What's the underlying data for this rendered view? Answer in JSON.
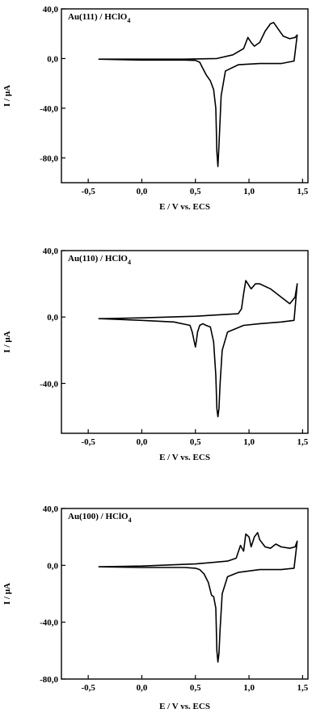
{
  "chart_data": [
    {
      "type": "line",
      "label_main": "Au(111) / HClO",
      "label_sub": "4",
      "xlabel": "E / V vs. ECS",
      "ylabel": "I / μA",
      "xlim": [
        -0.75,
        1.55
      ],
      "ylim": [
        -100,
        40
      ],
      "xticks": [
        -0.5,
        0.0,
        0.5,
        1.0,
        1.5
      ],
      "xtick_labels": [
        "-0,5",
        "0,0",
        "0,5",
        "1,0",
        "1,5"
      ],
      "yticks": [
        40,
        0,
        -40,
        -80
      ],
      "ytick_labels": [
        "40,0",
        "0,0",
        "-40,0",
        "-80,0"
      ],
      "series": [
        {
          "x": [
            -0.4,
            0.0,
            0.4,
            0.7,
            0.85,
            0.95,
            0.99,
            1.02,
            1.05,
            1.1,
            1.15,
            1.2,
            1.23,
            1.27,
            1.32,
            1.38,
            1.43,
            1.45,
            1.42,
            1.3,
            1.1,
            0.9,
            0.78,
            0.74,
            0.72,
            0.71,
            0.7,
            0.69,
            0.67,
            0.64,
            0.6,
            0.57,
            0.54,
            0.5,
            0.4,
            0.0,
            -0.4
          ],
          "y": [
            -0.5,
            -0.5,
            -0.5,
            0.0,
            3,
            8,
            17,
            13,
            10,
            13,
            22,
            28,
            29,
            24,
            18,
            16,
            17,
            19,
            -2,
            -4,
            -4,
            -5,
            -10,
            -30,
            -70,
            -87,
            -75,
            -40,
            -25,
            -18,
            -13,
            -8,
            -3,
            -1.5,
            -1.2,
            -1.2,
            -0.5
          ]
        }
      ]
    },
    {
      "type": "line",
      "label_main": "Au(110) / HClO",
      "label_sub": "4",
      "xlabel": "E / V vs. ECS",
      "ylabel": "I / μA",
      "xlim": [
        -0.75,
        1.55
      ],
      "ylim": [
        -70,
        40
      ],
      "xticks": [
        -0.5,
        0.0,
        0.5,
        1.0,
        1.5
      ],
      "xtick_labels": [
        "-0,5",
        "0,0",
        "0,5",
        "1,0",
        "1,5"
      ],
      "yticks": [
        40,
        0,
        -40
      ],
      "ytick_labels": [
        "40,0",
        "0,0",
        "-40,0"
      ],
      "series": [
        {
          "x": [
            -0.4,
            0.0,
            0.5,
            0.9,
            0.93,
            0.95,
            0.97,
            0.99,
            1.02,
            1.06,
            1.1,
            1.2,
            1.3,
            1.38,
            1.43,
            1.45,
            1.42,
            1.3,
            1.1,
            0.95,
            0.8,
            0.75,
            0.73,
            0.72,
            0.71,
            0.7,
            0.69,
            0.67,
            0.64,
            0.6,
            0.57,
            0.54,
            0.52,
            0.51,
            0.5,
            0.49,
            0.47,
            0.45,
            0.3,
            0.0,
            -0.4
          ],
          "y": [
            -1,
            -0.5,
            0.5,
            2,
            5,
            14,
            22,
            20,
            17,
            20,
            20,
            17,
            12,
            8,
            12,
            20,
            -2,
            -3,
            -4,
            -5,
            -9,
            -20,
            -40,
            -55,
            -60,
            -55,
            -35,
            -15,
            -6,
            -5,
            -4,
            -5,
            -9,
            -14,
            -18,
            -15,
            -9,
            -5,
            -3,
            -2,
            -1
          ]
        }
      ]
    },
    {
      "type": "line",
      "label_main": "Au(100) / HClO",
      "label_sub": "4",
      "xlabel": "E / V vs. ECS",
      "ylabel": "I / μA",
      "xlim": [
        -0.75,
        1.55
      ],
      "ylim": [
        -80,
        40
      ],
      "xticks": [
        -0.5,
        0.0,
        0.5,
        1.0,
        1.5
      ],
      "xtick_labels": [
        "-0,5",
        "0,0",
        "0,5",
        "1,0",
        "1,5"
      ],
      "yticks": [
        40,
        0,
        -40,
        -80
      ],
      "ytick_labels": [
        "40,0",
        "0,0",
        "-40,0",
        "-80,0"
      ],
      "series": [
        {
          "x": [
            -0.4,
            0.0,
            0.5,
            0.8,
            0.88,
            0.92,
            0.95,
            0.97,
            1.0,
            1.02,
            1.05,
            1.08,
            1.1,
            1.15,
            1.2,
            1.25,
            1.3,
            1.38,
            1.43,
            1.45,
            1.42,
            1.3,
            1.1,
            0.9,
            0.8,
            0.75,
            0.73,
            0.72,
            0.71,
            0.7,
            0.69,
            0.67,
            0.65,
            0.62,
            0.58,
            0.54,
            0.5,
            0.4,
            0.0,
            -0.4
          ],
          "y": [
            -1,
            -0.5,
            1,
            3,
            5,
            14,
            10,
            22,
            20,
            13,
            20,
            23,
            18,
            13,
            12,
            15,
            13,
            12,
            13,
            17,
            -2,
            -3,
            -3,
            -5,
            -8,
            -20,
            -45,
            -62,
            -68,
            -60,
            -30,
            -22,
            -21,
            -12,
            -6,
            -3,
            -2,
            -1.5,
            -1.5,
            -1
          ]
        }
      ]
    }
  ]
}
